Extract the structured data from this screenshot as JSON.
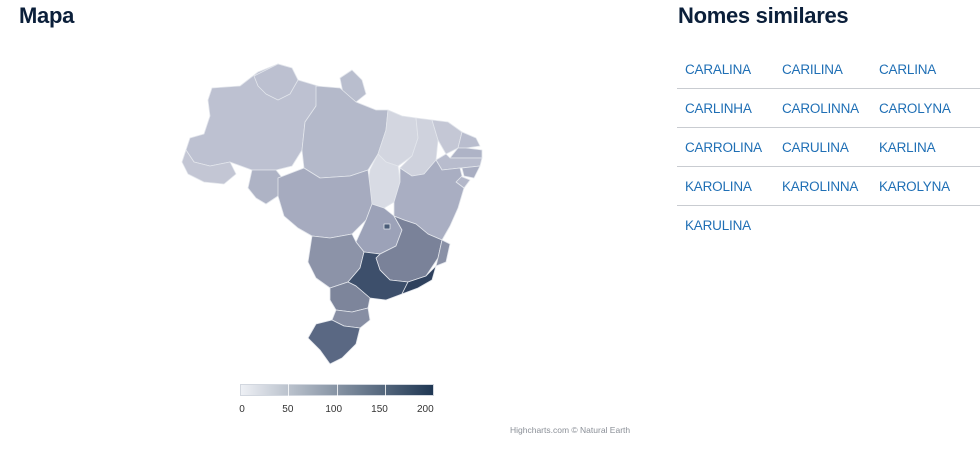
{
  "map_section": {
    "title": "Mapa"
  },
  "names_section": {
    "title": "Nomes similares"
  },
  "names": [
    [
      "CARALINA",
      "CARILINA",
      "CARLINA"
    ],
    [
      "CARLINHA",
      "CAROLINNA",
      "CAROLYNA"
    ],
    [
      "CARROLINA",
      "CARULINA",
      "KARLINA"
    ],
    [
      "KAROLINA",
      "KAROLINNA",
      "KAROLYNA"
    ],
    [
      "KARULINA"
    ]
  ],
  "legend": {
    "ticks": [
      "0",
      "50",
      "100",
      "150",
      "200"
    ],
    "range": [
      0,
      200
    ],
    "color_low": "#eef0f5",
    "color_high": "#1f3753"
  },
  "credits": "Highcharts.com © Natural Earth",
  "colors": {
    "title": "#0b1f3a",
    "link": "#1f6fb5"
  }
}
